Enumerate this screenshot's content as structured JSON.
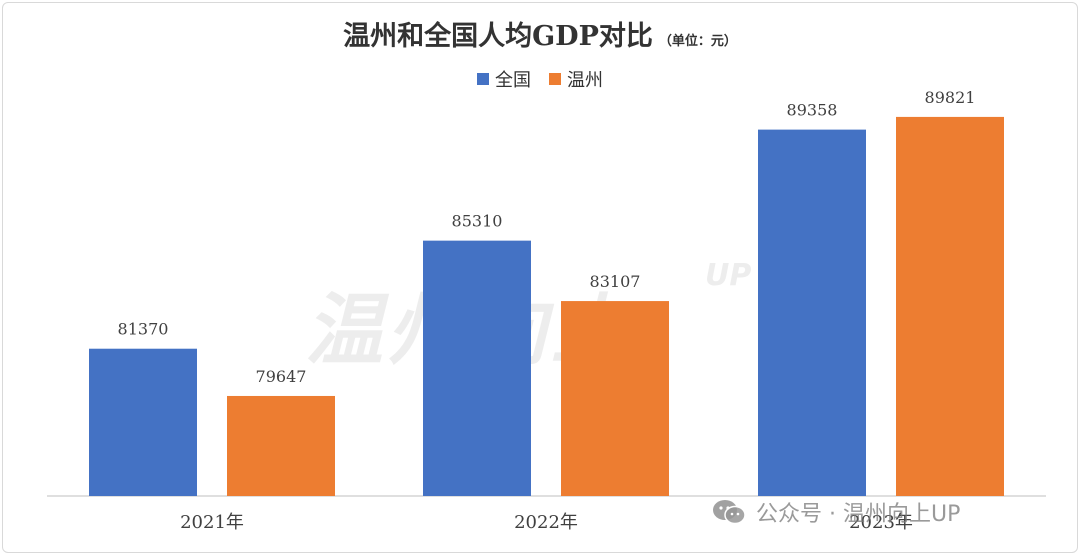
{
  "chart_data": {
    "type": "bar",
    "title": "温州和全国人均GDP对比",
    "unit_note": "（单位：元）",
    "categories": [
      "2021年",
      "2022年",
      "2023年"
    ],
    "series": [
      {
        "name": "全国",
        "color": "#4472c4",
        "values": [
          81370,
          85310,
          89358
        ]
      },
      {
        "name": "温州",
        "color": "#ed7d31",
        "values": [
          79647,
          83107,
          89821
        ]
      }
    ],
    "ylim": [
      0,
      90000
    ],
    "grid": false,
    "legend_position": "top"
  },
  "watermark": {
    "text": "温州向上",
    "suffix": "UP"
  },
  "footer": {
    "wechat_label": "公众号 · 温州向上UP",
    "wechat_icon": "wechat-icon"
  }
}
